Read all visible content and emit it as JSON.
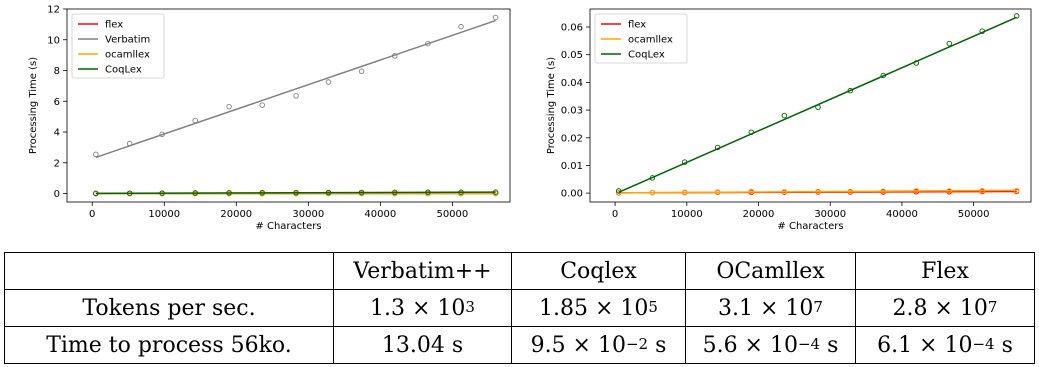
{
  "chart_data": [
    {
      "type": "scatter",
      "title": "",
      "xlabel": "# Characters",
      "ylabel": "Processing Time (s)",
      "xlim": [
        -3500,
        58000
      ],
      "ylim": [
        -0.55,
        12.0
      ],
      "xticks": [
        0,
        10000,
        20000,
        30000,
        40000,
        50000
      ],
      "yticks": [
        0,
        2,
        4,
        6,
        8,
        10,
        12
      ],
      "tick_labels_x": [
        "0",
        "10000",
        "20000",
        "30000",
        "40000",
        "50000"
      ],
      "tick_labels_y": [
        "0",
        "2",
        "4",
        "6",
        "8",
        "10",
        "12"
      ],
      "grid": false,
      "legend_position": "top-left",
      "x": [
        500,
        5200,
        9700,
        14300,
        19000,
        23600,
        28300,
        32800,
        37400,
        42000,
        46600,
        51200,
        56000
      ],
      "series": [
        {
          "name": "flex",
          "color": "#ff0000",
          "values": [
            0.0001,
            0.0005,
            0.001,
            0.0015,
            0.002,
            0.0025,
            0.003,
            0.0035,
            0.004,
            0.0045,
            0.005,
            0.0055,
            0.006
          ],
          "fit": [
            0.0,
            0.006
          ]
        },
        {
          "name": "Verbatim",
          "color": "#808080",
          "values": [
            2.55,
            3.25,
            3.85,
            4.75,
            5.65,
            5.75,
            6.35,
            7.25,
            7.95,
            8.95,
            9.75,
            10.85,
            11.45
          ],
          "fit": [
            2.35,
            11.25
          ]
        },
        {
          "name": "ocamllex",
          "color": "#ffa500",
          "values": [
            0.0001,
            0.0003,
            0.0004,
            0.0005,
            0.0006,
            0.0006,
            0.0007,
            0.0007,
            0.0008,
            0.0009,
            0.0009,
            0.001,
            0.001
          ],
          "fit": [
            0.0,
            0.001
          ]
        },
        {
          "name": "CoqLex",
          "color": "#006400",
          "values": [
            0.01,
            0.02,
            0.03,
            0.04,
            0.05,
            0.055,
            0.06,
            0.065,
            0.07,
            0.075,
            0.08,
            0.085,
            0.09
          ],
          "fit": [
            0.01,
            0.09
          ]
        }
      ]
    },
    {
      "type": "scatter",
      "title": "",
      "xlabel": "# Characters",
      "ylabel": "Processing Time (s)",
      "xlim": [
        -3500,
        58000
      ],
      "ylim": [
        -0.0032,
        0.0665
      ],
      "xticks": [
        0,
        10000,
        20000,
        30000,
        40000,
        50000
      ],
      "yticks": [
        0.0,
        0.01,
        0.02,
        0.03,
        0.04,
        0.05,
        0.06
      ],
      "tick_labels_x": [
        "0",
        "10000",
        "20000",
        "30000",
        "40000",
        "50000"
      ],
      "tick_labels_y": [
        "0.00",
        "0.01",
        "0.02",
        "0.03",
        "0.04",
        "0.05",
        "0.06"
      ],
      "grid": false,
      "legend_position": "top-left",
      "x": [
        500,
        5200,
        9700,
        14300,
        19000,
        23600,
        28300,
        32800,
        37400,
        42000,
        46600,
        51200,
        56000
      ],
      "series": [
        {
          "name": "flex",
          "color": "#ff0000",
          "values": [
            0.0001,
            0.0002,
            0.0002,
            0.0003,
            0.0003,
            0.0003,
            0.0004,
            0.0004,
            0.0004,
            0.0005,
            0.0005,
            0.0006,
            0.0006
          ],
          "fit": [
            0.0001,
            0.0006
          ]
        },
        {
          "name": "ocamllex",
          "color": "#ffa500",
          "values": [
            0.0002,
            0.0002,
            0.0003,
            0.0004,
            0.0006,
            0.0005,
            0.0006,
            0.0006,
            0.0007,
            0.0009,
            0.0008,
            0.0009,
            0.0009
          ],
          "fit": [
            0.0001,
            0.001
          ]
        },
        {
          "name": "CoqLex",
          "color": "#006400",
          "values": [
            0.0008,
            0.0055,
            0.0112,
            0.0165,
            0.022,
            0.028,
            0.031,
            0.037,
            0.0425,
            0.047,
            0.054,
            0.0585,
            0.064
          ],
          "fit": [
            0.0003,
            0.0635
          ]
        }
      ]
    }
  ],
  "table": {
    "headers": [
      "",
      "Verbatim++",
      "Coqlex",
      "OCamllex",
      "Flex"
    ],
    "rows": [
      {
        "label": "Tokens per sec.",
        "cells": [
          {
            "base": "1.3 × 10",
            "exp": "3",
            "suffix": ""
          },
          {
            "base": "1.85 × 10",
            "exp": "5",
            "suffix": ""
          },
          {
            "base": "3.1 × 10",
            "exp": "7",
            "suffix": ""
          },
          {
            "base": "2.8 × 10",
            "exp": "7",
            "suffix": ""
          }
        ]
      },
      {
        "label": "Time to process 56ko.",
        "cells": [
          {
            "base": "13.04 s",
            "exp": "",
            "suffix": ""
          },
          {
            "base": "9.5 × 10",
            "exp": "−2",
            "suffix": " s"
          },
          {
            "base": "5.6 × 10",
            "exp": "−4",
            "suffix": " s"
          },
          {
            "base": "6.1 × 10",
            "exp": "−4",
            "suffix": " s"
          }
        ]
      }
    ]
  }
}
